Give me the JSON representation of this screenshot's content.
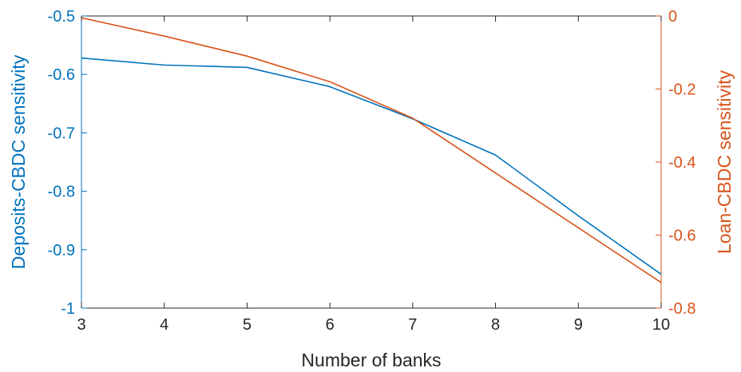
{
  "chart_data": {
    "type": "line",
    "xlabel": "Number of banks",
    "ylabel_left": "Deposits-CBDC sensitivity",
    "ylabel_right": "Loan-CBDC sensitivity",
    "xlim": [
      3,
      10
    ],
    "ylim_left": [
      -1,
      -0.5
    ],
    "ylim_right": [
      -0.8,
      0
    ],
    "x_ticks": [
      3,
      4,
      5,
      6,
      7,
      8,
      9,
      10
    ],
    "y_ticks_left": [
      -1,
      -0.9,
      -0.8,
      -0.7,
      -0.6,
      -0.5
    ],
    "y_ticks_right": [
      -0.8,
      -0.6,
      -0.4,
      -0.2,
      0
    ],
    "grid": false,
    "x": [
      3,
      4,
      5,
      6,
      7,
      8,
      9,
      10
    ],
    "series": [
      {
        "axis": "left",
        "color": "#0072BD",
        "values": [
          -0.572,
          -0.584,
          -0.588,
          -0.621,
          -0.676,
          -0.738,
          -0.842,
          -0.942
        ]
      },
      {
        "axis": "right",
        "color": "#D95319",
        "values": [
          -0.005,
          -0.055,
          -0.11,
          -0.18,
          -0.28,
          -0.43,
          -0.58,
          -0.73
        ]
      }
    ]
  }
}
